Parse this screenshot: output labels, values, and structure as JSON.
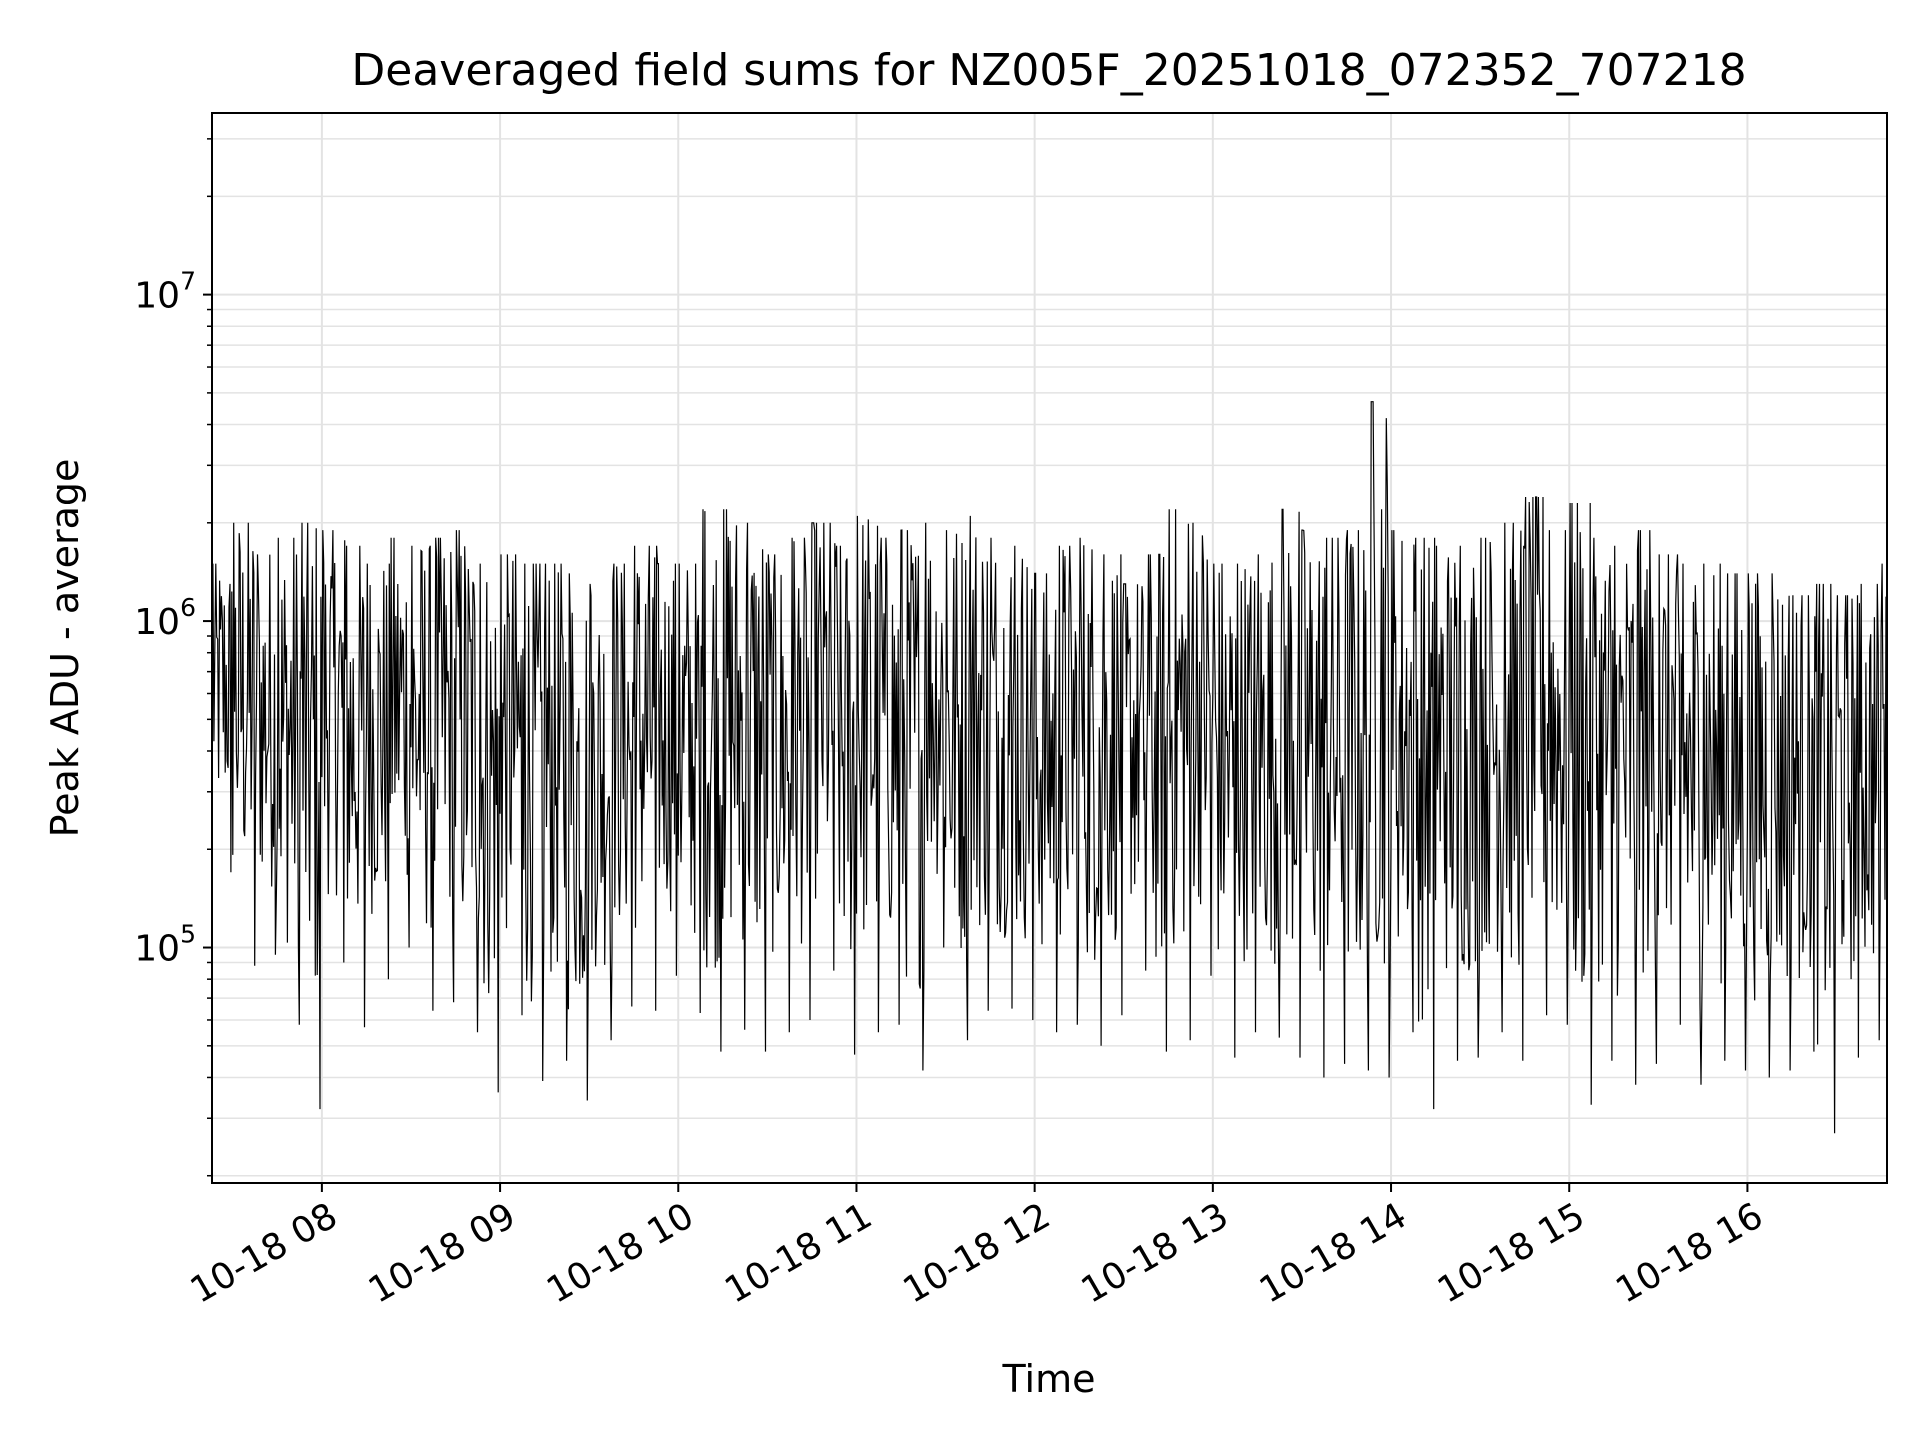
{
  "chart_data": {
    "type": "line",
    "title": "Deaveraged field sums for NZ005F_20251018_072352_707218",
    "xlabel": "Time",
    "ylabel": "Peak ADU - average",
    "yscale": "log",
    "grid": true,
    "line_color": "#000000",
    "x_range": [
      "10-18 07:23",
      "10-18 16:47"
    ],
    "ylim": [
      19000,
      36000000
    ],
    "x_ticks": [
      {
        "time": "10-18 08:00",
        "label": "10-18 08"
      },
      {
        "time": "10-18 09:00",
        "label": "10-18 09"
      },
      {
        "time": "10-18 10:00",
        "label": "10-18 10"
      },
      {
        "time": "10-18 11:00",
        "label": "10-18 11"
      },
      {
        "time": "10-18 12:00",
        "label": "10-18 12"
      },
      {
        "time": "10-18 13:00",
        "label": "10-18 13"
      },
      {
        "time": "10-18 14:00",
        "label": "10-18 14"
      },
      {
        "time": "10-18 15:00",
        "label": "10-18 15"
      },
      {
        "time": "10-18 16:00",
        "label": "10-18 16"
      }
    ],
    "y_ticks": [
      {
        "value": 100000,
        "base": "10",
        "exp": "5"
      },
      {
        "value": 1000000,
        "base": "10",
        "exp": "6"
      },
      {
        "value": 10000000,
        "base": "10",
        "exp": "7"
      }
    ],
    "series": [
      {
        "x": [
          "10-18 07:23",
          "10-18 07:30",
          "10-18 07:38",
          "10-18 07:45",
          "10-18 07:53",
          "10-18 08:00",
          "10-18 08:08",
          "10-18 08:15",
          "10-18 08:23",
          "10-18 08:30",
          "10-18 08:38",
          "10-18 08:45",
          "10-18 08:53",
          "10-18 09:00",
          "10-18 09:08",
          "10-18 09:15",
          "10-18 09:23",
          "10-18 09:30",
          "10-18 09:38",
          "10-18 09:45",
          "10-18 09:53",
          "10-18 10:00",
          "10-18 10:08",
          "10-18 10:15",
          "10-18 10:23",
          "10-18 10:30",
          "10-18 10:38",
          "10-18 10:45",
          "10-18 10:53",
          "10-18 11:00",
          "10-18 11:08",
          "10-18 11:15",
          "10-18 11:23",
          "10-18 11:30",
          "10-18 11:38",
          "10-18 11:45",
          "10-18 11:53",
          "10-18 12:00",
          "10-18 12:08",
          "10-18 12:15",
          "10-18 12:23",
          "10-18 12:30",
          "10-18 12:38",
          "10-18 12:45",
          "10-18 12:53",
          "10-18 13:00",
          "10-18 13:08",
          "10-18 13:15",
          "10-18 13:23",
          "10-18 13:30",
          "10-18 13:38",
          "10-18 13:45",
          "10-18 13:53",
          "10-18 14:00",
          "10-18 14:08",
          "10-18 14:15",
          "10-18 14:23",
          "10-18 14:30",
          "10-18 14:38",
          "10-18 14:45",
          "10-18 14:53",
          "10-18 15:00",
          "10-18 15:08",
          "10-18 15:15",
          "10-18 15:23",
          "10-18 15:30",
          "10-18 15:38",
          "10-18 15:45",
          "10-18 15:53",
          "10-18 16:00",
          "10-18 16:08",
          "10-18 16:15",
          "10-18 16:23",
          "10-18 16:30",
          "10-18 16:38",
          "10-18 16:45"
        ],
        "max": [
          1500000,
          2000000,
          1600000,
          1800000,
          2000000,
          1900000,
          1700000,
          1500000,
          1800000,
          1700000,
          1800000,
          1900000,
          1500000,
          1600000,
          1500000,
          1500000,
          1400000,
          1300000,
          1500000,
          1700000,
          1500000,
          1500000,
          2200000,
          2200000,
          2000000,
          1600000,
          1800000,
          2000000,
          1700000,
          2100000,
          1800000,
          1900000,
          2000000,
          1900000,
          2100000,
          1800000,
          1700000,
          1400000,
          1700000,
          1800000,
          1600000,
          1300000,
          1600000,
          2200000,
          2000000,
          1500000,
          1500000,
          1600000,
          2200000,
          1900000,
          1800000,
          1900000,
          4700000,
          1900000,
          1800000,
          1700000,
          1700000,
          1800000,
          2000000,
          2400000,
          1900000,
          2300000,
          1800000,
          1700000,
          1900000,
          1600000,
          1500000,
          1500000,
          1400000,
          1400000,
          1400000,
          1200000,
          1300000,
          1200000,
          1300000,
          1500000
        ],
        "min": [
          170000,
          88000,
          95000,
          58000,
          32000,
          90000,
          57000,
          80000,
          100000,
          64000,
          68000,
          55000,
          36000,
          62000,
          39000,
          45000,
          34000,
          52000,
          66000,
          64000,
          82000,
          63000,
          48000,
          56000,
          48000,
          55000,
          60000,
          85000,
          47000,
          55000,
          58000,
          42000,
          100000,
          52000,
          64000,
          65000,
          60000,
          55000,
          58000,
          50000,
          62000,
          85000,
          48000,
          52000,
          82000,
          46000,
          55000,
          53000,
          46000,
          40000,
          44000,
          42000,
          40000,
          55000,
          32000,
          45000,
          46000,
          55000,
          45000,
          62000,
          58000,
          33000,
          45000,
          38000,
          44000,
          58000,
          38000,
          45000,
          42000,
          40000,
          42000,
          48000,
          27000,
          46000,
          52000,
          140000
        ]
      }
    ]
  }
}
